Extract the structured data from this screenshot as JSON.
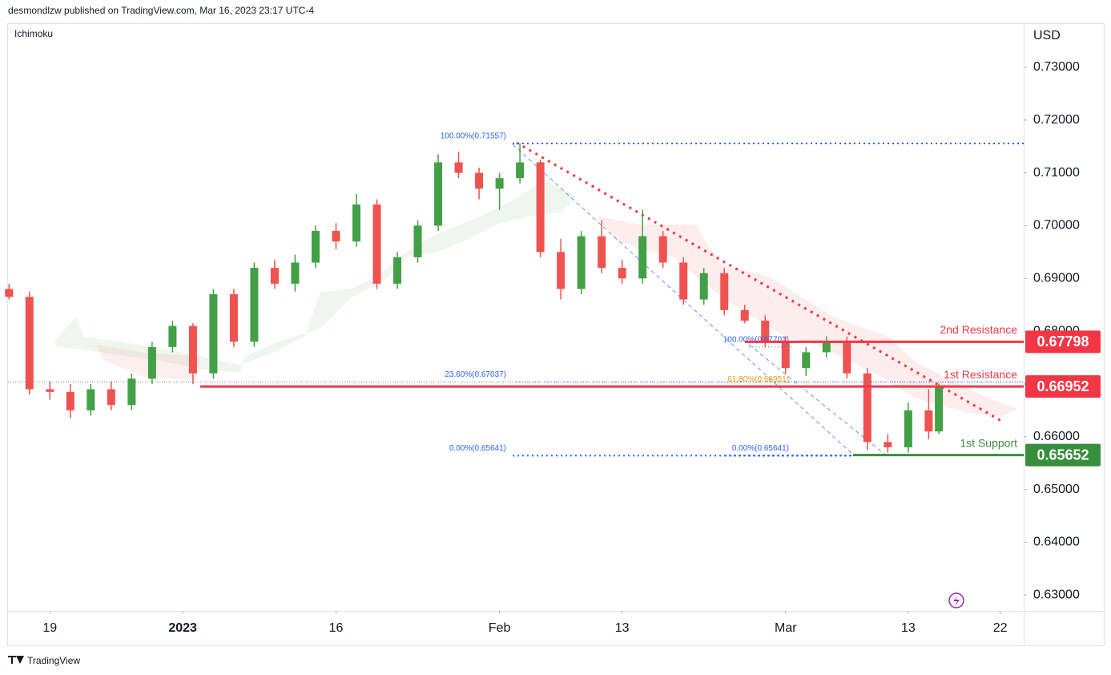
{
  "header": "desmondlzw published on TradingView.com, Mar 16, 2023 23:17 UTC-4",
  "indicator": "Ichimoku",
  "footer": "TradingView",
  "chart_data": {
    "type": "candlestick",
    "y_axis_label": "USD",
    "ylim": [
      0.627,
      0.7382
    ],
    "yticks": [
      {
        "value": 0.63,
        "label": "0.63000"
      },
      {
        "value": 0.64,
        "label": "0.64000"
      },
      {
        "value": 0.65,
        "label": "0.65000"
      },
      {
        "value": 0.66,
        "label": "0.66000"
      },
      {
        "value": 0.67,
        "label": "0.67000"
      },
      {
        "value": 0.68,
        "label": "0.68000"
      },
      {
        "value": 0.69,
        "label": "0.69000"
      },
      {
        "value": 0.7,
        "label": "0.70000"
      },
      {
        "value": 0.71,
        "label": "0.71000"
      },
      {
        "value": 0.72,
        "label": "0.72000"
      },
      {
        "value": 0.73,
        "label": "0.73000"
      }
    ],
    "xlim": [
      -4.1,
      95.3
    ],
    "xticks": [
      {
        "value": 0,
        "label": "19"
      },
      {
        "value": 13,
        "label": "2023"
      },
      {
        "value": 28,
        "label": "16"
      },
      {
        "value": 44,
        "label": "Feb"
      },
      {
        "value": 56,
        "label": "13"
      },
      {
        "value": 72,
        "label": "Mar"
      },
      {
        "value": 84,
        "label": "13"
      },
      {
        "value": 93,
        "label": "22"
      }
    ],
    "up_color": "#43a047",
    "down_color": "#ef5350",
    "x": [
      -4,
      -2,
      0,
      2,
      4,
      6,
      8,
      10,
      12,
      14,
      16,
      18,
      20,
      22,
      24,
      26,
      28,
      30,
      32,
      34,
      36,
      38,
      40,
      42,
      44,
      46,
      48,
      50,
      52,
      54,
      56,
      58,
      60,
      62,
      64,
      66,
      68,
      70,
      72,
      74,
      76,
      78,
      80,
      82,
      84,
      86,
      87
    ],
    "open": [
      0.688,
      0.6865,
      0.669,
      0.6685,
      0.665,
      0.669,
      0.666,
      0.671,
      0.677,
      0.681,
      0.672,
      0.687,
      0.678,
      0.692,
      0.689,
      0.693,
      0.699,
      0.697,
      0.704,
      0.689,
      0.694,
      0.7,
      0.712,
      0.71,
      0.707,
      0.709,
      0.712,
      0.695,
      0.688,
      0.698,
      0.692,
      0.69,
      0.698,
      0.693,
      0.686,
      0.691,
      0.684,
      0.682,
      0.678,
      0.673,
      0.676,
      0.678,
      0.672,
      0.659,
      0.658,
      0.665,
      0.661
    ],
    "high": [
      0.689,
      0.6875,
      0.6705,
      0.67,
      0.67,
      0.6705,
      0.672,
      0.678,
      0.682,
      0.6815,
      0.688,
      0.688,
      0.693,
      0.6935,
      0.6945,
      0.7,
      0.7005,
      0.706,
      0.705,
      0.695,
      0.701,
      0.7135,
      0.714,
      0.711,
      0.71,
      0.7156,
      0.7125,
      0.6975,
      0.699,
      0.701,
      0.6935,
      0.703,
      0.699,
      0.694,
      0.692,
      0.692,
      0.685,
      0.683,
      0.679,
      0.677,
      0.679,
      0.679,
      0.673,
      0.6605,
      0.6665,
      0.669,
      0.67
    ],
    "low": [
      0.686,
      0.668,
      0.667,
      0.6635,
      0.664,
      0.665,
      0.665,
      0.67,
      0.676,
      0.67,
      0.671,
      0.677,
      0.677,
      0.688,
      0.6875,
      0.692,
      0.6955,
      0.696,
      0.688,
      0.688,
      0.693,
      0.699,
      0.709,
      0.705,
      0.703,
      0.708,
      0.694,
      0.686,
      0.687,
      0.691,
      0.689,
      0.689,
      0.692,
      0.685,
      0.685,
      0.683,
      0.6815,
      0.677,
      0.672,
      0.6715,
      0.675,
      0.671,
      0.6575,
      0.657,
      0.657,
      0.6595,
      0.6605
    ],
    "close": [
      0.6865,
      0.669,
      0.6685,
      0.665,
      0.669,
      0.666,
      0.671,
      0.677,
      0.681,
      0.672,
      0.687,
      0.678,
      0.692,
      0.689,
      0.693,
      0.699,
      0.697,
      0.704,
      0.689,
      0.694,
      0.7,
      0.712,
      0.71,
      0.707,
      0.709,
      0.712,
      0.695,
      0.688,
      0.698,
      0.692,
      0.69,
      0.698,
      0.693,
      0.686,
      0.691,
      0.684,
      0.682,
      0.678,
      0.673,
      0.676,
      0.678,
      0.672,
      0.659,
      0.658,
      0.665,
      0.661,
      0.6695
    ],
    "fib_labels": [
      {
        "label": "100.00%(0.71557)",
        "value": 0.71557
      },
      {
        "label": "23.60%(0.67037)",
        "value": 0.67037
      },
      {
        "label": "0.00%(0.65641)",
        "value": 0.65641
      },
      {
        "label": "100.00%(0.67701)",
        "value": 0.67701
      },
      {
        "label": "61.80%(0.66951)",
        "value": 0.66951
      },
      {
        "label": "0.00%(0.65641)",
        "value": 0.65641
      }
    ],
    "levels": [
      {
        "name": "2nd Resistance",
        "value": 0.67798,
        "color": "#f23645"
      },
      {
        "name": "1st Resistance",
        "value": 0.66952,
        "color": "#f23645"
      },
      {
        "name": "1st Support",
        "value": 0.65652,
        "color": "#388e3c"
      }
    ]
  }
}
